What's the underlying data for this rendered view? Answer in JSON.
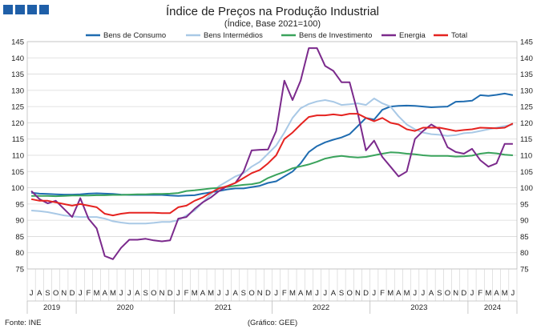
{
  "header": {
    "title": "Índice de Preços na Produção Industrial",
    "subtitle": "(Índice, Base 2021=100)"
  },
  "footer": {
    "source": "Fonte: INE",
    "credit": "(Gráfico: GEE)"
  },
  "chart_data": {
    "type": "line",
    "title": "Índice de Preços na Produção Industrial",
    "subtitle": "(Índice, Base 2021=100)",
    "ylim": [
      75,
      145
    ],
    "y_ticks": [
      75,
      80,
      85,
      90,
      95,
      100,
      105,
      110,
      115,
      120,
      125,
      130,
      135,
      140,
      145
    ],
    "legend_position": "top",
    "grid": "horizontal",
    "x_months": [
      "J",
      "A",
      "S",
      "O",
      "N",
      "D",
      "J",
      "F",
      "M",
      "A",
      "M",
      "J",
      "J",
      "A",
      "S",
      "O",
      "N",
      "D",
      "J",
      "F",
      "M",
      "A",
      "M",
      "J",
      "J",
      "A",
      "S",
      "O",
      "N",
      "D",
      "J",
      "F",
      "M",
      "A",
      "M",
      "J",
      "J",
      "A",
      "S",
      "O",
      "N",
      "D",
      "J",
      "F",
      "M",
      "A",
      "M",
      "J",
      "J",
      "A",
      "S",
      "O",
      "N",
      "D",
      "J",
      "F",
      "M",
      "A",
      "M",
      "J"
    ],
    "x_years": [
      {
        "label": "2019",
        "start": 0,
        "end": 6
      },
      {
        "label": "2020",
        "start": 6,
        "end": 18
      },
      {
        "label": "2021",
        "start": 18,
        "end": 30
      },
      {
        "label": "2022",
        "start": 30,
        "end": 42
      },
      {
        "label": "2023",
        "start": 42,
        "end": 54
      },
      {
        "label": "2024",
        "start": 54,
        "end": 60
      }
    ],
    "series": [
      {
        "name": "Bens de Consumo",
        "color": "#1f6cb0",
        "values": [
          98.5,
          98.2,
          98.1,
          98.0,
          97.9,
          97.9,
          98.0,
          98.2,
          98.3,
          98.2,
          98.1,
          97.9,
          97.8,
          97.8,
          97.8,
          97.8,
          97.8,
          97.6,
          97.5,
          97.6,
          97.7,
          98.2,
          98.6,
          99.0,
          99.5,
          99.8,
          99.8,
          100.2,
          100.6,
          101.5,
          102.0,
          103.5,
          105.0,
          107.5,
          111.0,
          112.8,
          114.0,
          114.8,
          115.5,
          116.5,
          119.0,
          121.5,
          121.0,
          124.0,
          125.0,
          125.2,
          125.3,
          125.2,
          125.0,
          124.8,
          124.9,
          125.0,
          126.5,
          126.6,
          126.8,
          128.5,
          128.3,
          128.6,
          129.0,
          128.5
        ]
      },
      {
        "name": "Bens Intermédios",
        "color": "#a9c9e6",
        "values": [
          93.0,
          92.8,
          92.5,
          92.0,
          91.5,
          91.2,
          91.0,
          91.0,
          91.0,
          90.5,
          89.7,
          89.3,
          89.0,
          89.0,
          89.0,
          89.2,
          89.5,
          89.5,
          90.0,
          91.5,
          93.0,
          95.5,
          98.0,
          100.5,
          102.0,
          103.5,
          104.5,
          106.5,
          108.0,
          110.5,
          113.0,
          117.0,
          121.5,
          124.5,
          125.8,
          126.6,
          127.0,
          126.5,
          125.5,
          125.7,
          126.0,
          125.5,
          127.5,
          126.0,
          125.0,
          122.0,
          119.5,
          118.0,
          117.0,
          116.5,
          116.3,
          116.0,
          116.2,
          116.8,
          117.0,
          117.5,
          118.0,
          118.5,
          119.0,
          119.5
        ]
      },
      {
        "name": "Bens de Investimento",
        "color": "#3aa35c",
        "values": [
          97.5,
          97.5,
          97.5,
          97.4,
          97.5,
          97.6,
          97.6,
          97.6,
          97.7,
          97.7,
          97.8,
          97.8,
          97.9,
          98.0,
          98.0,
          98.1,
          98.1,
          98.2,
          98.4,
          99.0,
          99.2,
          99.5,
          99.8,
          100.0,
          100.3,
          100.6,
          100.9,
          101.1,
          101.6,
          103.0,
          104.0,
          104.9,
          106.0,
          106.6,
          107.2,
          108.0,
          109.0,
          109.5,
          109.8,
          109.5,
          109.3,
          109.5,
          110.0,
          110.5,
          110.9,
          110.8,
          110.5,
          110.3,
          110.0,
          109.8,
          109.8,
          109.8,
          109.6,
          109.7,
          109.9,
          110.5,
          110.8,
          110.6,
          110.2,
          110.0
        ]
      },
      {
        "name": "Energia",
        "color": "#7b2a8c",
        "values": [
          99.0,
          96.5,
          95.2,
          96.0,
          93.5,
          91.0,
          96.8,
          90.5,
          87.5,
          79.0,
          78.0,
          81.5,
          84.0,
          84.0,
          84.3,
          83.8,
          83.5,
          83.8,
          90.5,
          91.0,
          93.5,
          95.5,
          97.0,
          99.0,
          100.5,
          101.5,
          105.0,
          111.5,
          111.7,
          111.8,
          117.5,
          133.0,
          127.0,
          133.0,
          143.0,
          143.0,
          137.5,
          136.0,
          132.5,
          132.5,
          123.0,
          111.5,
          114.5,
          109.5,
          106.5,
          103.5,
          105.0,
          115.0,
          117.5,
          119.5,
          118.0,
          112.5,
          111.0,
          110.5,
          112.0,
          108.5,
          106.5,
          107.5,
          113.5,
          113.5
        ]
      },
      {
        "name": "Total",
        "color": "#e52320",
        "values": [
          96.5,
          96.0,
          96.0,
          95.5,
          95.0,
          94.5,
          95.0,
          94.5,
          94.0,
          92.0,
          91.5,
          92.0,
          92.3,
          92.3,
          92.3,
          92.3,
          92.2,
          92.2,
          94.0,
          94.5,
          96.0,
          97.0,
          98.5,
          99.8,
          100.5,
          101.5,
          103.0,
          104.5,
          105.5,
          107.5,
          110.0,
          115.0,
          117.0,
          119.5,
          121.8,
          122.3,
          122.3,
          122.6,
          122.3,
          122.8,
          122.8,
          121.5,
          120.5,
          121.5,
          120.0,
          119.5,
          118.0,
          117.5,
          118.5,
          118.5,
          118.5,
          118.0,
          117.5,
          117.8,
          118.0,
          118.5,
          118.4,
          118.3,
          118.5,
          119.8
        ]
      }
    ]
  }
}
